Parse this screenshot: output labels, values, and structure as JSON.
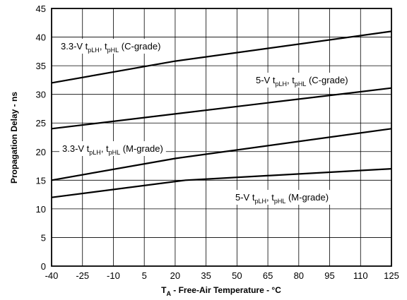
{
  "chart_data": {
    "type": "line",
    "x_ticks": [
      "-40",
      "-25",
      "-10",
      "5",
      "20",
      "35",
      "50",
      "65",
      "80",
      "95",
      "110",
      "125"
    ],
    "y_ticks": [
      "0",
      "5",
      "10",
      "15",
      "20",
      "25",
      "30",
      "35",
      "40",
      "45"
    ],
    "xlim": [
      -40,
      125
    ],
    "ylim": [
      0,
      45
    ],
    "grid": true,
    "xlabel_main": "T",
    "xlabel_sub": "A",
    "xlabel_rest": " - Free-Air Temperature - °C",
    "ylabel": "Propagation Delay - ns",
    "series": [
      {
        "label_pre": "3.3-V t",
        "sub1": "pLH",
        "mid": ", t",
        "sub2": "pHL",
        "post": " (C-grade)",
        "x": [
          -40,
          20,
          125
        ],
        "y": [
          32,
          35.8,
          41
        ]
      },
      {
        "label_pre": "5-V t",
        "sub1": "pLH",
        "mid": ", t",
        "sub2": "pHL",
        "post": " (C-grade)",
        "x": [
          -40,
          125
        ],
        "y": [
          24,
          31.1
        ]
      },
      {
        "label_pre": "3.3-V t",
        "sub1": "pLH",
        "mid": ", t",
        "sub2": "pHL",
        "post": " (M-grade)",
        "x": [
          -40,
          20,
          125
        ],
        "y": [
          15,
          18.8,
          24
        ]
      },
      {
        "label_pre": "5-V t",
        "sub1": "pLH",
        "mid": ", t",
        "sub2": "pHL",
        "post": " (M-grade)",
        "x": [
          -40,
          25,
          125
        ],
        "y": [
          12,
          15,
          17
        ]
      }
    ]
  }
}
